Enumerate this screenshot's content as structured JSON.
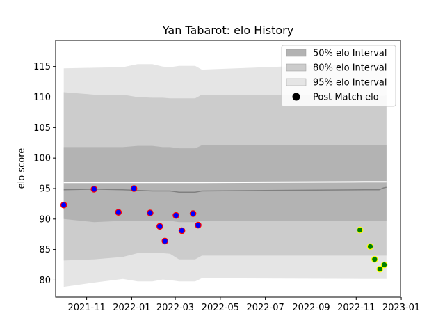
{
  "chart_data": {
    "type": "line",
    "title": "Yan Tabarot: elo History",
    "xlabel": "",
    "ylabel": "elo score",
    "xlim": [
      "2021-09-20",
      "2022-12-31"
    ],
    "ylim": [
      77.2,
      119.3
    ],
    "x_ticks": [
      "2021-11",
      "2022-01",
      "2022-03",
      "2022-05",
      "2022-07",
      "2022-09",
      "2022-11",
      "2023-01"
    ],
    "y_ticks": [
      80,
      85,
      90,
      95,
      100,
      105,
      110,
      115
    ],
    "grid": false,
    "legend_position": "top-right",
    "colors": {
      "band_50": "#b3b3b3",
      "band_80": "#cccccc",
      "band_95": "#e5e5e5",
      "mean_line": "#808080",
      "outlier_line": "#ffffff",
      "points_early_fill": "#0000ff",
      "points_early_edge": "#ff0000",
      "points_late_fill": "#008000",
      "points_late_edge": "#ffff00"
    },
    "legend": [
      {
        "label": "50% elo Interval",
        "kind": "band_50"
      },
      {
        "label": "80% elo Interval",
        "kind": "band_80"
      },
      {
        "label": "95% elo Interval",
        "kind": "band_95"
      },
      {
        "label": "Post Match elo",
        "kind": "point"
      }
    ],
    "bands": {
      "x": [
        "2021-10-01",
        "2021-11-11",
        "2021-12-20",
        "2022-01-09",
        "2022-01-29",
        "2022-02-12",
        "2022-02-22",
        "2022-03-06",
        "2022-03-15",
        "2022-03-28",
        "2022-04-06",
        "2022-11-12",
        "2022-11-23",
        "2022-12-02",
        "2022-12-08",
        "2022-12-12"
      ],
      "mean": [
        94.8,
        94.9,
        94.8,
        94.7,
        94.6,
        94.6,
        94.6,
        94.4,
        94.4,
        94.4,
        94.6,
        94.8,
        94.8,
        94.8,
        95.1,
        95.2
      ],
      "p50_low": [
        90.0,
        89.5,
        89.7,
        89.7,
        89.7,
        89.7,
        89.7,
        89.5,
        89.5,
        89.5,
        89.7,
        89.7,
        89.7,
        89.7,
        89.7,
        89.7
      ],
      "p50_high": [
        101.8,
        101.8,
        101.8,
        102.0,
        102.0,
        101.8,
        101.8,
        101.6,
        101.6,
        101.6,
        102.1,
        102.1,
        102.1,
        102.1,
        102.1,
        102.2
      ],
      "p80_low": [
        83.2,
        83.4,
        83.8,
        84.4,
        84.4,
        84.4,
        84.3,
        83.4,
        83.4,
        83.4,
        84.0,
        84.0,
        84.0,
        84.0,
        84.0,
        84.0
      ],
      "p80_high": [
        110.8,
        110.4,
        110.4,
        110.0,
        109.9,
        109.9,
        109.8,
        109.8,
        109.8,
        109.8,
        110.4,
        110.2,
        110.2,
        110.2,
        110.2,
        110.3
      ],
      "p95_low": [
        78.9,
        79.6,
        80.2,
        79.8,
        79.8,
        80.1,
        80.0,
        79.8,
        79.8,
        79.8,
        80.3,
        80.2,
        80.2,
        80.2,
        80.2,
        80.2
      ],
      "p95_high": [
        114.7,
        114.8,
        114.9,
        115.4,
        115.4,
        115.0,
        114.9,
        115.1,
        115.1,
        115.1,
        114.5,
        115.5,
        115.5,
        115.5,
        115.6,
        115.6
      ],
      "upper_white": [
        96.0,
        96.0,
        96.0,
        96.0,
        96.0,
        96.0,
        96.0,
        96.0,
        96.0,
        96.0,
        96.0,
        96.1,
        96.1,
        96.1,
        96.1,
        96.1
      ]
    },
    "series": [
      {
        "name": "Post Match elo",
        "points": [
          {
            "x": "2021-10-01",
            "y": 92.3,
            "group": "early"
          },
          {
            "x": "2021-11-11",
            "y": 94.9,
            "group": "early"
          },
          {
            "x": "2021-12-14",
            "y": 91.1,
            "group": "early"
          },
          {
            "x": "2022-01-04",
            "y": 95.0,
            "group": "early"
          },
          {
            "x": "2022-01-26",
            "y": 91.0,
            "group": "early"
          },
          {
            "x": "2022-02-08",
            "y": 88.8,
            "group": "early"
          },
          {
            "x": "2022-02-15",
            "y": 86.4,
            "group": "early"
          },
          {
            "x": "2022-03-02",
            "y": 90.6,
            "group": "early"
          },
          {
            "x": "2022-03-10",
            "y": 88.1,
            "group": "early"
          },
          {
            "x": "2022-03-25",
            "y": 90.9,
            "group": "early"
          },
          {
            "x": "2022-04-01",
            "y": 89.0,
            "group": "early"
          },
          {
            "x": "2022-11-06",
            "y": 88.2,
            "group": "late"
          },
          {
            "x": "2022-11-20",
            "y": 85.5,
            "group": "late"
          },
          {
            "x": "2022-11-26",
            "y": 83.4,
            "group": "late"
          },
          {
            "x": "2022-12-03",
            "y": 81.8,
            "group": "late"
          },
          {
            "x": "2022-12-09",
            "y": 82.5,
            "group": "late"
          }
        ]
      }
    ]
  }
}
